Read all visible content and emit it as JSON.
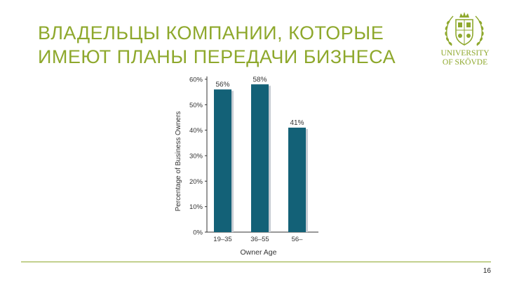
{
  "slide": {
    "title_line1": "ВЛАДЕЛЬЦЫ КОМПАНИИ, КОТОРЫЕ",
    "title_line2": "ИМЕЮТ ПЛАНЫ ПЕРЕДАЧИ БИЗНЕСА",
    "page_number": "16",
    "accent_color": "#8ea82c"
  },
  "logo": {
    "line1": "UNIVERSITY",
    "line2": "OF SKÖVDE",
    "icon": "university-seal-icon"
  },
  "chart_data": {
    "type": "bar",
    "categories": [
      "19–35",
      "36–55",
      "56–"
    ],
    "values": [
      56,
      58,
      41
    ],
    "data_labels": [
      "56%",
      "58%",
      "41%"
    ],
    "yticks": [
      "0%",
      "10%",
      "20%",
      "30%",
      "40%",
      "50%",
      "60%"
    ],
    "ylim": [
      0,
      60
    ],
    "xlabel": "Owner Age",
    "ylabel": "Percentage of Business Owners",
    "bar_color": "#136177",
    "grid": false
  }
}
